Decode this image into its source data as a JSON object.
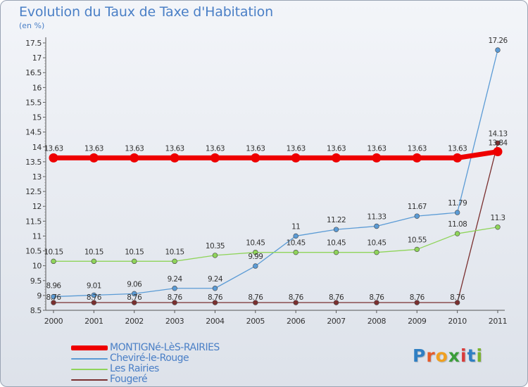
{
  "chart_data": {
    "type": "line",
    "title": "Evolution du Taux de Taxe d'Habitation",
    "subtitle": "(en %)",
    "xlabel": "",
    "ylabel": "(en %)",
    "x": [
      "2000",
      "2001",
      "2002",
      "2003",
      "2004",
      "2005",
      "2006",
      "2007",
      "2008",
      "2009",
      "2010",
      "2011"
    ],
    "ylim": [
      8.5,
      17.5
    ],
    "yticks": [
      "8.5",
      "9",
      "9.5",
      "10",
      "10.5",
      "11",
      "11.5",
      "12",
      "12.5",
      "13",
      "13.5",
      "14",
      "14.5",
      "15",
      "15.5",
      "16",
      "16.5",
      "17",
      "17.5"
    ],
    "grid": false,
    "legend_position": "bottom-left",
    "series": [
      {
        "name": "MONTIGNé-LèS-RAIRIES",
        "color": "#ee0000",
        "values": [
          13.63,
          13.63,
          13.63,
          13.63,
          13.63,
          13.63,
          13.63,
          13.63,
          13.63,
          13.63,
          13.63,
          13.84
        ],
        "labels": [
          "13.63",
          "13.63",
          "13.63",
          "13.63",
          "13.63",
          "13.63",
          "13.63",
          "13.63",
          "13.63",
          "13.63",
          "13.63",
          "13.84"
        ]
      },
      {
        "name": "Cheviré-le-Rouge",
        "color": "#5b9bd5",
        "values": [
          8.96,
          9.01,
          9.06,
          9.24,
          9.24,
          9.99,
          11,
          11.22,
          11.33,
          11.67,
          11.79,
          17.26
        ],
        "labels": [
          "8.96",
          "9.01",
          "9.06",
          "9.24",
          "9.24",
          "9.99",
          "11",
          "11.22",
          "11.33",
          "11.67",
          "11.79",
          "17.26"
        ]
      },
      {
        "name": "Les Rairies",
        "color": "#8fd45a",
        "values": [
          10.15,
          10.15,
          10.15,
          10.15,
          10.35,
          10.45,
          10.45,
          10.45,
          10.45,
          10.55,
          11.08,
          11.3
        ],
        "labels": [
          "10.15",
          "10.15",
          "10.15",
          "10.15",
          "10.35",
          "10.45",
          "10.45",
          "10.45",
          "10.45",
          "10.55",
          "11.08",
          "11.3"
        ]
      },
      {
        "name": "Fougeré",
        "color": "#7a2f2f",
        "values": [
          8.76,
          8.76,
          8.76,
          8.76,
          8.76,
          8.76,
          8.76,
          8.76,
          8.76,
          8.76,
          8.76,
          14.13
        ],
        "labels": [
          "8.76",
          "8.76",
          "8.76",
          "8.76",
          "8.76",
          "8.76",
          "8.76",
          "8.76",
          "8.76",
          "8.76",
          "8.76",
          "14.13"
        ]
      }
    ]
  },
  "logo": {
    "letters": [
      "P",
      "r",
      "o",
      "x",
      "i",
      "t",
      "i"
    ]
  }
}
